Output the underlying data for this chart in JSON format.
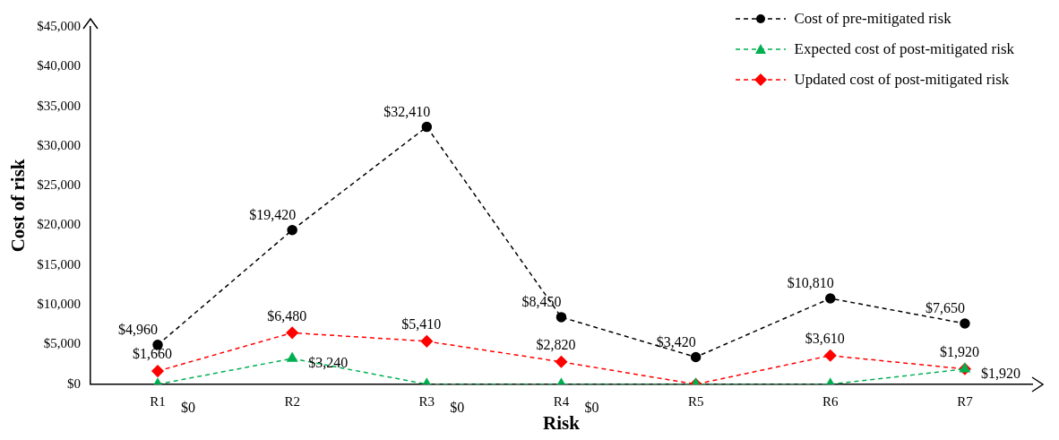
{
  "chart_data": {
    "type": "line",
    "xlabel": "Risk",
    "ylabel": "Cost of risk",
    "categories": [
      "R1",
      "R2",
      "R3",
      "R4",
      "R5",
      "R6",
      "R7"
    ],
    "series": [
      {
        "name": "Cost of pre-mitigated risk",
        "color": "#000000",
        "marker": "circle",
        "values": [
          4960,
          19420,
          32410,
          8450,
          3420,
          10810,
          7650
        ],
        "value_labels": [
          "$4,960",
          "$19,420",
          "$32,410",
          "$8,450",
          "$3,420",
          "$10,810",
          "$7,650"
        ]
      },
      {
        "name": "Expected cost of post-mitigated risk",
        "color": "#00b050",
        "marker": "triangle",
        "values": [
          0,
          3240,
          0,
          0,
          0,
          0,
          1920
        ],
        "value_labels": [
          "$0",
          "$3,240",
          "$0",
          "$0",
          null,
          null,
          "$1,920"
        ]
      },
      {
        "name": "Updated cost of post-mitigated risk",
        "color": "#ff0000",
        "marker": "diamond",
        "values": [
          1660,
          6480,
          5410,
          2820,
          0,
          3610,
          1920
        ],
        "value_labels": [
          "$1,660",
          "$6,480",
          "$5,410",
          "$2,820",
          null,
          "$3,610",
          "$1,920"
        ]
      }
    ],
    "ylim": [
      0,
      45000
    ],
    "yticks": [
      {
        "value": 0,
        "label": "$0"
      },
      {
        "value": 5000,
        "label": "$5,000"
      },
      {
        "value": 10000,
        "label": "$10,000"
      },
      {
        "value": 15000,
        "label": "$15,000"
      },
      {
        "value": 20000,
        "label": "$20,000"
      },
      {
        "value": 25000,
        "label": "$25,000"
      },
      {
        "value": 30000,
        "label": "$30,000"
      },
      {
        "value": 35000,
        "label": "$35,000"
      },
      {
        "value": 40000,
        "label": "$40,000"
      },
      {
        "value": 45000,
        "label": "$45,000"
      }
    ],
    "grid": false,
    "legend": "top right",
    "line_style": "dashed"
  }
}
